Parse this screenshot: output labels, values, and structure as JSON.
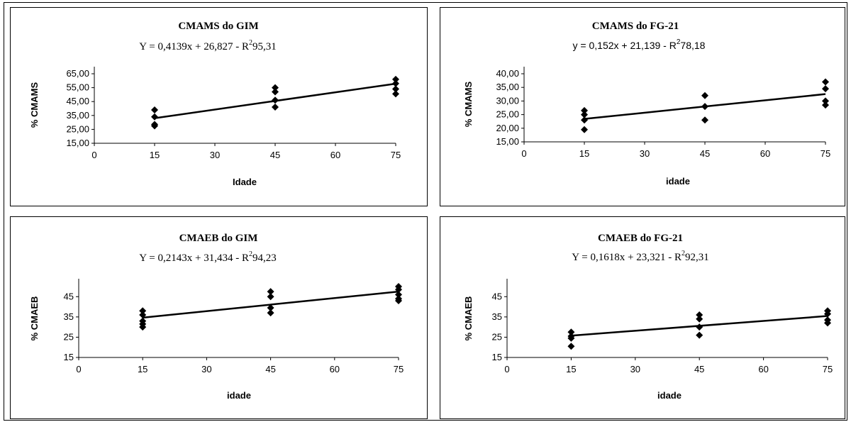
{
  "chart_data": [
    {
      "type": "scatter",
      "title": "CMAMS do GIM",
      "equation": "Y = 0,4139x + 26,827 - R",
      "r2": "95,31",
      "xlabel": "Idade",
      "ylabel": "% CMAMS",
      "xlim": [
        0,
        75
      ],
      "ylim": [
        15,
        65
      ],
      "xticks": [
        0,
        15,
        30,
        45,
        60,
        75
      ],
      "xtick_labels": [
        "0",
        "15",
        "30",
        "45",
        "60",
        "75"
      ],
      "yticks": [
        15,
        25,
        35,
        45,
        55,
        65
      ],
      "ytick_labels": [
        "15,00",
        "25,00",
        "35,00",
        "45,00",
        "55,00",
        "65,00"
      ],
      "grid": false,
      "legend": "none",
      "marker_color": "#000000",
      "series": [
        {
          "x": [
            15,
            15,
            15,
            15,
            45,
            45,
            45,
            45,
            75,
            75,
            75,
            75
          ],
          "y": [
            39,
            34,
            28.5,
            27.5,
            55,
            52,
            46,
            41,
            61,
            58,
            54,
            50.5
          ]
        }
      ],
      "trendline": {
        "slope": 0.4139,
        "intercept": 26.827,
        "x_range": [
          15,
          75
        ]
      }
    },
    {
      "type": "scatter",
      "title": "CMAMS do FG-21",
      "equation": "y = 0,152x + 21,139 - R",
      "r2": "78,18",
      "xlabel": "idade",
      "ylabel": "% CMAMS",
      "xlim": [
        0,
        75
      ],
      "ylim": [
        15,
        40
      ],
      "xticks": [
        0,
        15,
        30,
        45,
        60,
        75
      ],
      "xtick_labels": [
        "0",
        "15",
        "30",
        "45",
        "60",
        "75"
      ],
      "yticks": [
        15,
        20,
        25,
        30,
        35,
        40
      ],
      "ytick_labels": [
        "15,00",
        "20,00",
        "25,00",
        "30,00",
        "35,00",
        "40,00"
      ],
      "grid": false,
      "legend": "none",
      "marker_color": "#000000",
      "series": [
        {
          "x": [
            15,
            15,
            15,
            15,
            45,
            45,
            45,
            75,
            75,
            75,
            75
          ],
          "y": [
            26.5,
            25,
            23,
            19.5,
            32,
            28,
            23,
            37,
            34.5,
            30,
            28.5
          ]
        }
      ],
      "trendline": {
        "slope": 0.152,
        "intercept": 21.139,
        "x_range": [
          15,
          75
        ]
      }
    },
    {
      "type": "scatter",
      "title": "CMAEB do GIM",
      "equation": "Y = 0,2143x + 31,434 - R",
      "r2": "94,23",
      "xlabel": "idade",
      "ylabel": "% CMAEB",
      "xlim": [
        0,
        75
      ],
      "ylim": [
        15,
        50
      ],
      "xticks": [
        0,
        15,
        30,
        45,
        60,
        75
      ],
      "xtick_labels": [
        "0",
        "15",
        "30",
        "45",
        "60",
        "75"
      ],
      "yticks": [
        15,
        25,
        35,
        45
      ],
      "ytick_labels": [
        "15",
        "25",
        "35",
        "45"
      ],
      "grid": false,
      "legend": "none",
      "marker_color": "#000000",
      "series": [
        {
          "x": [
            15,
            15,
            15,
            15,
            15,
            45,
            45,
            45,
            45,
            75,
            75,
            75,
            75,
            75
          ],
          "y": [
            38,
            36,
            33,
            31.5,
            30,
            47.5,
            45,
            39.5,
            37,
            50,
            48.5,
            46,
            44,
            43
          ]
        }
      ],
      "trendline": {
        "slope": 0.2143,
        "intercept": 31.434,
        "x_range": [
          15,
          75
        ]
      }
    },
    {
      "type": "scatter",
      "title": "CMAEB do FG-21",
      "equation": "Y = 0,1618x + 23,321 -  R",
      "r2": "92,31",
      "xlabel": "idade",
      "ylabel": "% CMAEB",
      "xlim": [
        0,
        75
      ],
      "ylim": [
        15,
        50
      ],
      "xticks": [
        0,
        15,
        30,
        45,
        60,
        75
      ],
      "xtick_labels": [
        "0",
        "15",
        "30",
        "45",
        "60",
        "75"
      ],
      "yticks": [
        15,
        25,
        35,
        45
      ],
      "ytick_labels": [
        "15",
        "25",
        "35",
        "45"
      ],
      "grid": false,
      "legend": "none",
      "marker_color": "#000000",
      "series": [
        {
          "x": [
            15,
            15,
            15,
            15,
            45,
            45,
            45,
            45,
            75,
            75,
            75,
            75
          ],
          "y": [
            27.5,
            25.5,
            24.5,
            20.5,
            36,
            34,
            30,
            26,
            38,
            36.5,
            33.5,
            32
          ]
        }
      ],
      "trendline": {
        "slope": 0.1618,
        "intercept": 23.321,
        "x_range": [
          15,
          75
        ]
      }
    }
  ]
}
